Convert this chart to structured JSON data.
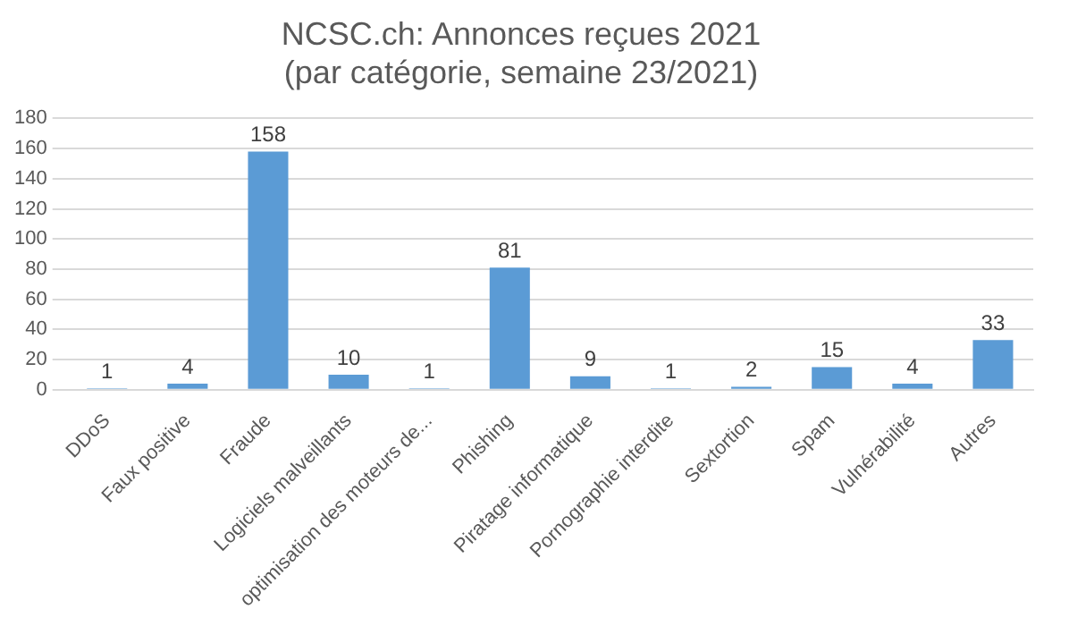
{
  "chart_data": {
    "type": "bar",
    "title": [
      "NCSC.ch: Annonces reçues 2021",
      "(par catégorie, semaine 23/2021)"
    ],
    "categories": [
      "DDoS",
      "Faux positive",
      "Fraude",
      "Logiciels malveillants",
      "optimisation des moteurs de...",
      "Phishing",
      "Piratage informatique",
      "Pornographie interdite",
      "Sextortion",
      "Spam",
      "Vulnérabilité",
      "Autres"
    ],
    "values": [
      1,
      4,
      158,
      10,
      1,
      81,
      9,
      1,
      2,
      15,
      4,
      33
    ],
    "color": "#5b9bd5",
    "ylim": [
      0,
      180
    ],
    "yticks": [
      0,
      20,
      40,
      60,
      80,
      100,
      120,
      140,
      160,
      180
    ],
    "grid": "y",
    "legend": false,
    "data_labels": true
  }
}
